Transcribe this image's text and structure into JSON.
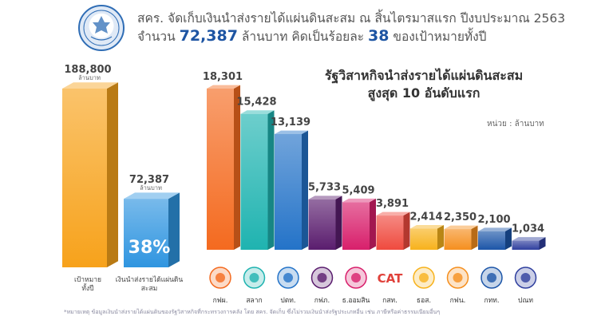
{
  "header": {
    "line1": "สคร. จัดเก็บเงินนำส่งรายได้แผ่นดินสะสม ณ สิ้นไตรมาสแรก ปีงบประมาณ 2563",
    "line2_pre": "จำนวน ",
    "line2_amount": "72,387",
    "line2_mid": " ล้านบาท คิดเป็นร้อยละ ",
    "line2_percent": "38",
    "line2_post": " ของเป้าหมายทั้งปี"
  },
  "colors": {
    "target": "#f7a21b",
    "collected": "#2f95e0",
    "blue_text": "#1e55a3"
  },
  "chart_data": [
    {
      "type": "bar",
      "categories": [
        "เป้าหมาย ทั้งปี",
        "เงินนำส่งรายได้แผ่นดิน สะสม"
      ],
      "values": [
        188800,
        72387
      ],
      "value_labels": [
        "188,800",
        "72,387"
      ],
      "value_unit": "ล้านบาท",
      "percent_label": "38%",
      "colors": [
        "#f7a21b",
        "#2f95e0"
      ]
    },
    {
      "type": "bar",
      "title": "รัฐวิสาหกิจนำส่งรายได้แผ่นดินสะสม สูงสุด 10 อันดับแรก",
      "title_line1": "รัฐวิสาหกิจนำส่งรายได้แผ่นดินสะสม",
      "title_line2": "สูงสุด 10 อันดับแรก",
      "unit": "หน่วย : ล้านบาท",
      "categories": [
        "กฟผ.",
        "สลาก",
        "ปตท.",
        "กฟภ.",
        "ธ.ออมสิน",
        "กสท.",
        "ธอส.",
        "กฟน.",
        "กทท.",
        "ปณท"
      ],
      "values": [
        18301,
        15428,
        13139,
        5733,
        5409,
        3891,
        2414,
        2350,
        2100,
        1034
      ],
      "value_labels": [
        "18,301",
        "15,428",
        "13,139",
        "5,733",
        "5,409",
        "3,891",
        "2,414",
        "2,350",
        "2,100",
        "1,034"
      ],
      "colors": [
        "#f46a1f",
        "#1fb3b0",
        "#2473c8",
        "#5a1d6e",
        "#d81f6b",
        "#ef4a3e",
        "#f7b21c",
        "#f58f1e",
        "#1c55a8",
        "#2f3f9e"
      ],
      "logo_texts": [
        "",
        "",
        "",
        "",
        "",
        "CAT",
        "",
        "",
        "",
        ""
      ]
    }
  ],
  "footnote": "*หมายเหตุ ข้อมูลเงินนำส่งรายได้แผ่นดินของรัฐวิสาหกิจที่กระทรวงการคลัง โดย สคร. จัดเก็บ ซึ่งไม่รวมเงินนำส่งรัฐประเภทอื่น เช่น ภาษีหรือค่าธรรมเนียมอื่นๆ"
}
